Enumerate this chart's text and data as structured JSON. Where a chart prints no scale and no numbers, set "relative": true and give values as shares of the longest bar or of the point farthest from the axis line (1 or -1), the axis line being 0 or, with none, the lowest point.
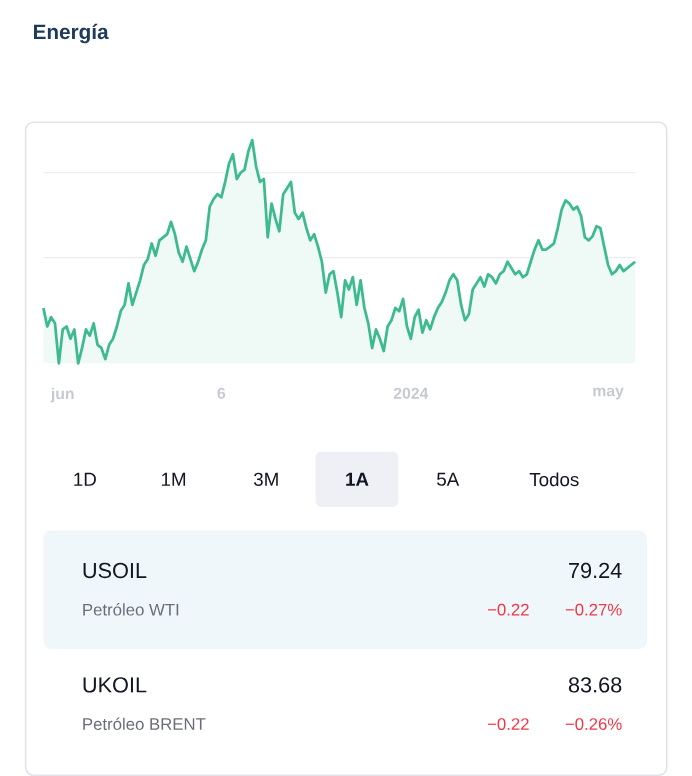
{
  "chart_data": [
    {
      "type": "area",
      "title": "Energía",
      "relative": true,
      "color": "#3dbb8f",
      "grid": "y",
      "categories": [
        null,
        null,
        null,
        null,
        null,
        "jun",
        null,
        null,
        null,
        null,
        null,
        null,
        null,
        null,
        null,
        null,
        null,
        null,
        null,
        null,
        null,
        null,
        null,
        null,
        null,
        null,
        null,
        null,
        null,
        null,
        null,
        null,
        null,
        null,
        null,
        null,
        null,
        null,
        null,
        null,
        null,
        null,
        null,
        null,
        null,
        null,
        "6",
        null,
        null,
        null,
        null,
        null,
        null,
        null,
        null,
        null,
        null,
        null,
        null,
        null,
        null,
        null,
        null,
        null,
        null,
        null,
        null,
        null,
        null,
        null,
        null,
        null,
        null,
        null,
        null,
        null,
        null,
        null,
        null,
        null,
        null,
        null,
        null,
        null,
        null,
        null,
        null,
        null,
        null,
        null,
        null,
        null,
        null,
        null,
        null,
        "2024",
        null,
        null,
        null,
        null,
        null,
        null,
        null,
        null,
        null,
        null,
        null,
        null,
        null,
        null,
        null,
        null,
        null,
        null,
        null,
        null,
        null,
        null,
        null,
        null,
        null,
        null,
        null,
        null,
        null,
        null,
        null,
        null,
        null,
        null,
        null,
        null,
        null,
        null,
        null,
        null,
        null,
        null,
        null,
        null,
        null,
        null,
        null,
        null,
        null,
        null,
        "may",
        null,
        null,
        null,
        null,
        null,
        null,
        null
      ],
      "values": [
        0.248,
        0.165,
        0.207,
        0.179,
        0,
        0.152,
        0.165,
        0.11,
        0.152,
        0,
        0.069,
        0.152,
        0.124,
        0.179,
        0.083,
        0.069,
        0.019,
        0.083,
        0.11,
        0.165,
        0.234,
        0.262,
        0.358,
        0.262,
        0.317,
        0.372,
        0.441,
        0.468,
        0.537,
        0.482,
        0.551,
        0.565,
        0.579,
        0.634,
        0.579,
        0.496,
        0.455,
        0.523,
        0.468,
        0.413,
        0.455,
        0.51,
        0.551,
        0.702,
        0.736,
        0.758,
        0.744,
        0.813,
        0.895,
        0.937,
        0.826,
        0.854,
        0.868,
        0.95,
        1,
        0.882,
        0.813,
        0.826,
        0.565,
        0.716,
        0.647,
        0.592,
        0.758,
        0.785,
        0.813,
        0.675,
        0.647,
        0.675,
        0.606,
        0.551,
        0.579,
        0.523,
        0.455,
        0.317,
        0.399,
        0.413,
        0.317,
        0.207,
        0.372,
        0.331,
        0.386,
        0.262,
        0.372,
        0.248,
        0.179,
        0.069,
        0.152,
        0.11,
        0.055,
        0.165,
        0.193,
        0.248,
        0.234,
        0.289,
        0.165,
        0.11,
        0.207,
        0.24,
        0.138,
        0.193,
        0.152,
        0.207,
        0.248,
        0.275,
        0.317,
        0.372,
        0.399,
        0.372,
        0.262,
        0.193,
        0.22,
        0.331,
        0.358,
        0.386,
        0.344,
        0.399,
        0.386,
        0.358,
        0.399,
        0.413,
        0.455,
        0.427,
        0.399,
        0.413,
        0.386,
        0.399,
        0.455,
        0.51,
        0.551,
        0.51,
        0.51,
        0.523,
        0.537,
        0.606,
        0.689,
        0.73,
        0.716,
        0.689,
        0.702,
        0.661,
        0.565,
        0.551,
        0.57,
        0.614,
        0.606,
        0.523,
        0.441,
        0.399,
        0.413,
        0.441,
        0.413,
        0.427,
        0.441,
        0.455
      ]
    },
    {
      "type": "other",
      "categories": [
        "1D",
        "1M",
        "3M",
        "1A",
        "5A",
        "Todos"
      ],
      "annotations": [
        "USOIL",
        "79.24",
        "Petróleo WTI",
        "−0.22",
        "−0.27%",
        "UKOIL",
        "83.68",
        "Petróleo BRENT",
        "−0.22",
        "−0.26%"
      ]
    }
  ]
}
